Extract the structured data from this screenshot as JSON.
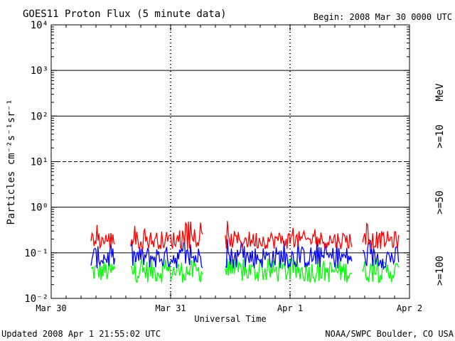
{
  "header": {
    "title": "GOES11 Proton Flux (5 minute data)",
    "begin": "Begin: 2008 Mar 30 0000 UTC"
  },
  "footer": {
    "updated": "Updated 2008 Apr  1 21:55:02 UTC",
    "credit": "NOAA/SWPC Boulder, CO USA"
  },
  "chart_data": {
    "type": "line",
    "title": "GOES11 Proton Flux (5 minute data)",
    "xlabel": "Universal Time",
    "ylabel": "Particles cm⁻²s⁻¹sr⁻¹",
    "y_scale": "log",
    "ylim": [
      0.01,
      10000
    ],
    "xlim": [
      "2008-03-30T00:00",
      "2008-04-02T00:00"
    ],
    "x_ticks": [
      "Mar 30",
      "Mar 31",
      "Apr 1",
      "Apr 2"
    ],
    "y_ticks": [
      "10⁻²",
      "10⁻¹",
      "10⁰",
      "10¹",
      "10²",
      "10³",
      "10⁴"
    ],
    "unit_label": "MeV",
    "legend_position": "right",
    "grid": {
      "solid_y": [
        0.1,
        1,
        100,
        1000
      ],
      "dashed_y": [
        10
      ],
      "dashed_x": [
        "Mar 31",
        "Apr 1"
      ]
    },
    "data_gaps": [
      [
        "2008-03-30T13:00",
        "2008-03-30T16:00"
      ],
      [
        "2008-03-31T06:30",
        "2008-03-31T11:00"
      ],
      [
        "2008-04-01T12:30",
        "2008-04-01T14:30"
      ]
    ],
    "data_end": "2008-04-01T21:55",
    "series": [
      {
        "name": ">=10",
        "color": "#ff0000",
        "baseline": 0.16,
        "peak": 0.5,
        "typical_range": [
          0.12,
          0.3
        ]
      },
      {
        "name": ">=50",
        "color": "#0000ff",
        "baseline": 0.08,
        "peak": 0.2,
        "typical_range": [
          0.045,
          0.14
        ]
      },
      {
        "name": ">=100",
        "color": "#00ff00",
        "baseline": 0.045,
        "peak": 0.075,
        "typical_range": [
          0.022,
          0.07
        ]
      }
    ]
  }
}
